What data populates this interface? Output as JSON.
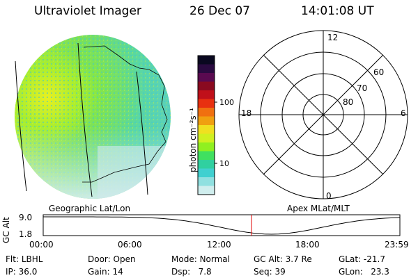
{
  "header": {
    "title": "Ultraviolet Imager",
    "date": "26 Dec 07",
    "time": "14:01:08 UT"
  },
  "colorbar": {
    "unit_label": "photon cm⁻²s⁻¹",
    "ticks": [
      "100",
      "10"
    ],
    "colors": [
      "#0a0820",
      "#2a0a40",
      "#5a0a50",
      "#8a0a20",
      "#c0101a",
      "#e83010",
      "#f07010",
      "#f0a010",
      "#f0e020",
      "#d0f020",
      "#90f020",
      "#40e060",
      "#30d0a0",
      "#40d0d0",
      "#90e0e0",
      "#d0eeee"
    ]
  },
  "polar": {
    "mlt_labels": {
      "top": "12",
      "bottom": "0",
      "left": "18",
      "right": "6"
    },
    "lat_labels": [
      "60",
      "70",
      "80"
    ]
  },
  "timeline": {
    "left_label": "Geographic Lat/Lon",
    "right_label": "Apex MLat/MLT",
    "axis_title": "GC Alt",
    "y_ticks": [
      "9.0",
      "1.8"
    ],
    "x_ticks": [
      "00:00",
      "06:00",
      "12:00",
      "18:00",
      "23:59"
    ],
    "current_time_fraction": 0.584
  },
  "status": {
    "col1": [
      {
        "label": "Flt:",
        "value": "LBHL"
      },
      {
        "label": "IP:",
        "value": "36.0"
      }
    ],
    "col2": [
      {
        "label": "Door:",
        "value": "Open"
      },
      {
        "label": "Gain:",
        "value": "14"
      }
    ],
    "col3": [
      {
        "label": "Mode:",
        "value": "Normal"
      },
      {
        "label": "Dsp:",
        "value": "7.8"
      }
    ],
    "col4": [
      {
        "label": "GC Alt:",
        "value": "3.7 Re"
      },
      {
        "label": "Seq:",
        "value": "39"
      }
    ],
    "col5": [
      {
        "label": "GLat:",
        "value": "-21.7"
      },
      {
        "label": "GLon:",
        "value": "23.3"
      }
    ]
  }
}
